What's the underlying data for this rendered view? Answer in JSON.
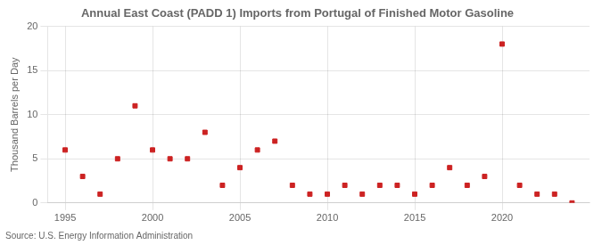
{
  "chart_data": {
    "type": "scatter",
    "title": "Annual East Coast (PADD 1) Imports from Portugal of Finished Motor Gasoline",
    "ylabel": "Thousand Barrels per Day",
    "source": "Source: U.S. Energy Information Administration",
    "x": [
      1995,
      1996,
      1997,
      1998,
      1999,
      2000,
      2001,
      2002,
      2003,
      2004,
      2005,
      2006,
      2007,
      2008,
      2009,
      2010,
      2011,
      2012,
      2013,
      2014,
      2015,
      2016,
      2017,
      2018,
      2019,
      2020,
      2021,
      2022,
      2023,
      2024
    ],
    "values": [
      6,
      3,
      1,
      5,
      11,
      6,
      5,
      5,
      8,
      2,
      4,
      6,
      7,
      2,
      1,
      1,
      2,
      1,
      2,
      2,
      1,
      2,
      4,
      2,
      3,
      18,
      2,
      1,
      1,
      0
    ],
    "color": "#cc2222",
    "marker": "s",
    "xlim": [
      1994.0,
      2025.0
    ],
    "xticks": [
      1995,
      2000,
      2005,
      2010,
      2015,
      2020
    ],
    "ylim": [
      0,
      20
    ],
    "yticks": [
      0,
      5,
      10,
      15,
      20
    ],
    "grid": true
  }
}
